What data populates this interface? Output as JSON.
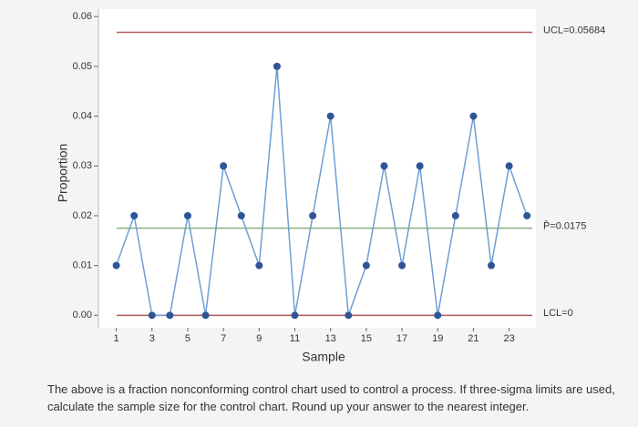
{
  "chart_data": {
    "type": "line",
    "x_label": "Sample",
    "y_label": "Proportion",
    "x": [
      1,
      2,
      3,
      4,
      5,
      6,
      7,
      8,
      9,
      10,
      11,
      12,
      13,
      14,
      15,
      16,
      17,
      18,
      19,
      20,
      21,
      22,
      23,
      24
    ],
    "series": [
      {
        "color": "#6d9fd3",
        "marker_color": "#2f5597",
        "values": [
          0.01,
          0.02,
          0,
          0,
          0.02,
          0,
          0.03,
          0.02,
          0.01,
          0.05,
          0,
          0.02,
          0.04,
          0,
          0.01,
          0.03,
          0.01,
          0.03,
          0,
          0.02,
          0.04,
          0.01,
          0.03,
          0.02
        ]
      }
    ],
    "xlim": [
      0,
      24.5
    ],
    "xticks": [
      1,
      3,
      5,
      7,
      9,
      11,
      13,
      15,
      17,
      19,
      21,
      23
    ],
    "ylim": [
      -0.0025,
      0.0615
    ],
    "yticks": [
      {
        "value": 0,
        "label": "0.00"
      },
      0.01,
      0.02,
      0.03,
      0.04,
      0.05,
      0.06
    ],
    "reference_lines": [
      {
        "value": 0.05684,
        "label": "UCL=0.05684",
        "color": "#b35a5a"
      },
      {
        "value": 0.0175,
        "label": "P̄=0.0175",
        "color": "#86b07a"
      },
      {
        "value": 0,
        "label": "LCL=0",
        "color": "#b35a5a"
      }
    ]
  },
  "question": [
    "The above is a fraction nonconforming control chart used to control a process. If three-sigma limits are used,",
    "calculate the sample size for the control chart. Round up your answer to the nearest integer."
  ]
}
